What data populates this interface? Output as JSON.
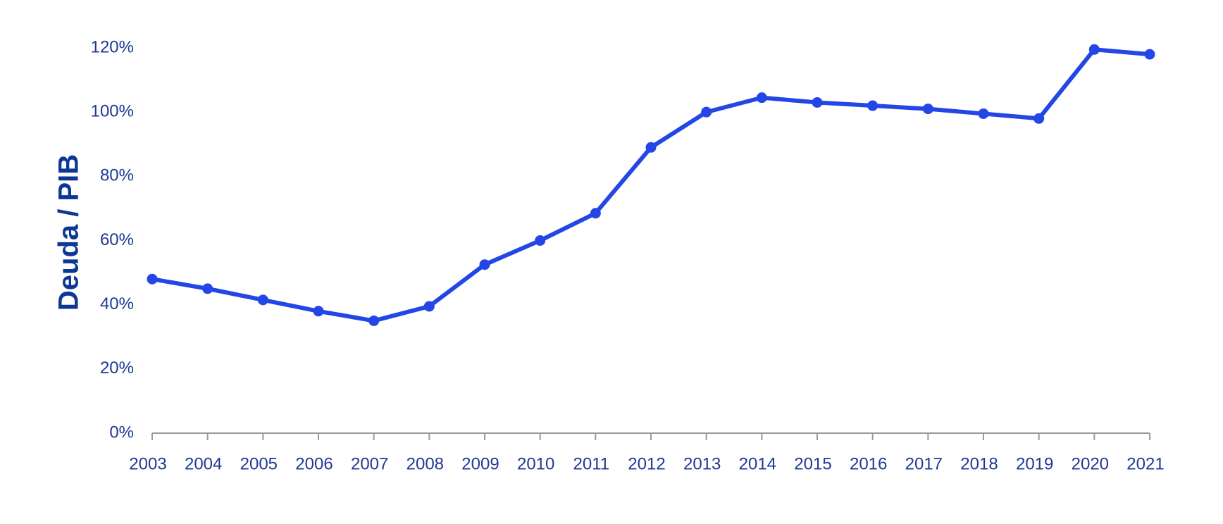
{
  "chart_data": {
    "type": "line",
    "ylabel": "Deuda / PIB",
    "xlabel": "",
    "x": [
      "2003",
      "2004",
      "2005",
      "2006",
      "2007",
      "2008",
      "2009",
      "2010",
      "2011",
      "2012",
      "2013",
      "2014",
      "2015",
      "2016",
      "2017",
      "2018",
      "2019",
      "2020",
      "2021"
    ],
    "series": [
      {
        "values": [
          48,
          45,
          41.5,
          38,
          35,
          39.5,
          52.5,
          60,
          68.5,
          89,
          100,
          104.5,
          103,
          102,
          101,
          99.5,
          98,
          119.5,
          118
        ]
      }
    ],
    "ylim": [
      0,
      120
    ],
    "yticks": [
      0,
      20,
      40,
      60,
      80,
      100,
      120
    ],
    "ytick_labels": [
      "0%",
      "20%",
      "40%",
      "60%",
      "80%",
      "100%",
      "120%"
    ],
    "grid": false,
    "colors": {
      "line": "#2346e6",
      "text": "#1f3a93",
      "title": "#0d3796",
      "axis": "#9a9a9a"
    }
  }
}
